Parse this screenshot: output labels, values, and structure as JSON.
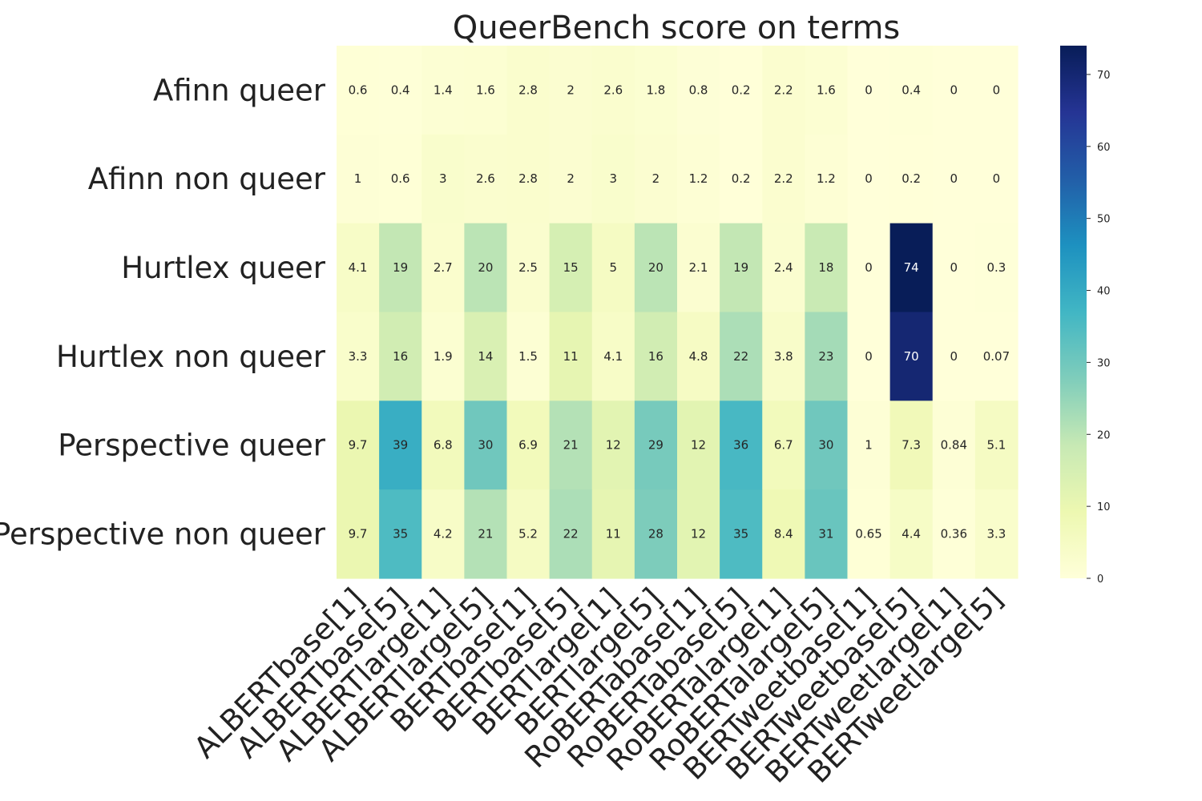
{
  "chart_data": {
    "type": "heatmap",
    "title": "QueerBench score on terms",
    "rows": [
      "Afinn queer",
      "Afinn non queer",
      "Hurtlex queer",
      "Hurtlex non queer",
      "Perspective queer",
      "Perspective non queer"
    ],
    "columns": [
      "ALBERTbase[1]",
      "ALBERTbase[5]",
      "ALBERTlarge[1]",
      "ALBERTlarge[5]",
      "BERTbase[1]",
      "BERTbase[5]",
      "BERTlarge[1]",
      "BERTlarge[5]",
      "RoBERTabase[1]",
      "RoBERTabase[5]",
      "RoBERTalarge[1]",
      "RoBERTalarge[5]",
      "BERTweetbase[1]",
      "BERTweetbase[5]",
      "BERTweetlarge[1]",
      "BERTweetlarge[5]"
    ],
    "values": [
      [
        0.6,
        0.4,
        1.4,
        1.6,
        2.8,
        2,
        2.6,
        1.8,
        0.8,
        0.2,
        2.2,
        1.6,
        0,
        0.4,
        0,
        0
      ],
      [
        1,
        0.6,
        3,
        2.6,
        2.8,
        2,
        3,
        2,
        1.2,
        0.2,
        2.2,
        1.2,
        0,
        0.2,
        0,
        0
      ],
      [
        4.1,
        19,
        2.7,
        20,
        2.5,
        15,
        5,
        20,
        2.1,
        19,
        2.4,
        18,
        0,
        74,
        0,
        0.3
      ],
      [
        3.3,
        16,
        1.9,
        14,
        1.5,
        11,
        4.1,
        16,
        4.8,
        22,
        3.8,
        23,
        0,
        70,
        0,
        0.07
      ],
      [
        9.7,
        39,
        6.8,
        30,
        6.9,
        21,
        12,
        29,
        12,
        36,
        6.7,
        30,
        1,
        7.3,
        0.84,
        5.1
      ],
      [
        9.7,
        35,
        4.2,
        21,
        5.2,
        22,
        11,
        28,
        12,
        35,
        8.4,
        31,
        0.65,
        4.4,
        0.36,
        3.3
      ]
    ],
    "value_labels": [
      [
        "0.6",
        "0.4",
        "1.4",
        "1.6",
        "2.8",
        "2",
        "2.6",
        "1.8",
        "0.8",
        "0.2",
        "2.2",
        "1.6",
        "0",
        "0.4",
        "0",
        "0"
      ],
      [
        "1",
        "0.6",
        "3",
        "2.6",
        "2.8",
        "2",
        "3",
        "2",
        "1.2",
        "0.2",
        "2.2",
        "1.2",
        "0",
        "0.2",
        "0",
        "0"
      ],
      [
        "4.1",
        "19",
        "2.7",
        "20",
        "2.5",
        "15",
        "5",
        "20",
        "2.1",
        "19",
        "2.4",
        "18",
        "0",
        "74",
        "0",
        "0.3"
      ],
      [
        "3.3",
        "16",
        "1.9",
        "14",
        "1.5",
        "11",
        "4.1",
        "16",
        "4.8",
        "22",
        "3.8",
        "23",
        "0",
        "70",
        "0",
        "0.07"
      ],
      [
        "9.7",
        "39",
        "6.8",
        "30",
        "6.9",
        "21",
        "12",
        "29",
        "12",
        "36",
        "6.7",
        "30",
        "1",
        "7.3",
        "0.84",
        "5.1"
      ],
      [
        "9.7",
        "35",
        "4.2",
        "21",
        "5.2",
        "22",
        "11",
        "28",
        "12",
        "35",
        "8.4",
        "31",
        "0.65",
        "4.4",
        "0.36",
        "3.3"
      ]
    ],
    "colorbar": {
      "min": 0,
      "max": 74,
      "ticks": [
        0,
        10,
        20,
        30,
        40,
        50,
        60,
        70
      ],
      "colormap": "YlGnBu"
    },
    "colors": {
      "colormap_stops": [
        "#ffffd9",
        "#edf8b1",
        "#c7e9b4",
        "#7fcdbb",
        "#41b6c4",
        "#1d91c0",
        "#225ea8",
        "#253494",
        "#081d58"
      ],
      "dark_text": "#262626",
      "light_text": "#ffffff"
    },
    "grid": false,
    "legend": "colorbar-right"
  }
}
